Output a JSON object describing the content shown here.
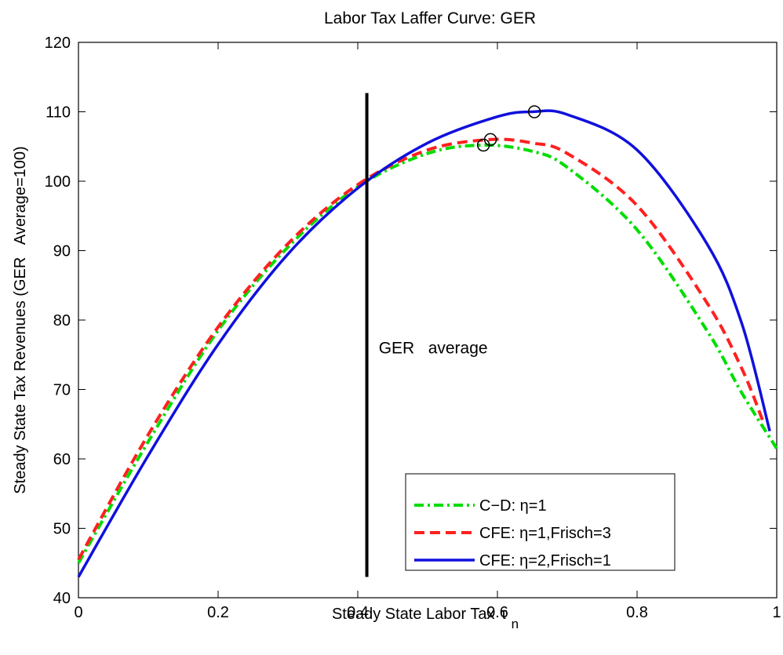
{
  "chart_data": {
    "type": "line",
    "title": "Labor Tax Laffer Curve: GER",
    "xlabel": "Steady State Labor Tax",
    "xlabel_symbol": "τ",
    "xlabel_subscript": "n",
    "ylabel": "Steady State Tax Revenues (GER   Average=100)",
    "xlim": [
      0,
      1
    ],
    "ylim": [
      40,
      120
    ],
    "xticks": [
      0,
      0.2,
      0.4,
      0.6,
      0.8,
      1
    ],
    "xtick_labels": [
      "0",
      "0.2",
      "0.4",
      "0.6",
      "0.8",
      "1"
    ],
    "yticks": [
      40,
      50,
      60,
      70,
      80,
      90,
      100,
      110,
      120
    ],
    "ytick_labels": [
      "40",
      "50",
      "60",
      "70",
      "80",
      "90",
      "100",
      "110",
      "120"
    ],
    "grid": false,
    "legend_position": "bottom-right",
    "series": [
      {
        "name": "C−D:  η=1",
        "color": "#00dd00",
        "style": "dashdot",
        "x": [
          0,
          0.1,
          0.2,
          0.3,
          0.4,
          0.5,
          0.58,
          0.65,
          0.7,
          0.8,
          0.9,
          0.95,
          1.0
        ],
        "y": [
          45,
          62.5,
          78.5,
          90.5,
          99.2,
          104.0,
          105.2,
          104.3,
          102.0,
          93.0,
          78.5,
          69.5,
          61.5
        ]
      },
      {
        "name": "CFE: η=1,Frisch=3",
        "color": "#ff2020",
        "style": "dashed",
        "x": [
          0,
          0.1,
          0.2,
          0.3,
          0.4,
          0.5,
          0.59,
          0.65,
          0.7,
          0.8,
          0.9,
          0.95,
          0.98
        ],
        "y": [
          45.5,
          63.5,
          79.0,
          91.0,
          99.5,
          104.5,
          106.0,
          105.5,
          104.0,
          96.5,
          82.5,
          73.0,
          65.5
        ]
      },
      {
        "name": "CFE: η=2,Frisch=1",
        "color": "#1010dd",
        "style": "solid",
        "x": [
          0,
          0.1,
          0.2,
          0.3,
          0.4,
          0.5,
          0.6,
          0.65,
          0.7,
          0.8,
          0.9,
          0.95,
          0.99
        ],
        "y": [
          43,
          60.5,
          76.5,
          89.5,
          99.0,
          105.5,
          109.3,
          110.0,
          109.6,
          104.5,
          91.0,
          79.5,
          64.0
        ]
      }
    ],
    "peak_markers": [
      {
        "x": 0.58,
        "y": 105.2
      },
      {
        "x": 0.59,
        "y": 106.0
      },
      {
        "x": 0.653,
        "y": 110.0
      }
    ],
    "vertical_line": {
      "x": 0.413,
      "y_from": 43,
      "y_to": 112.7,
      "color": "#000000"
    },
    "annotation": {
      "text": "GER   average",
      "x": 0.43,
      "y": 76
    }
  }
}
